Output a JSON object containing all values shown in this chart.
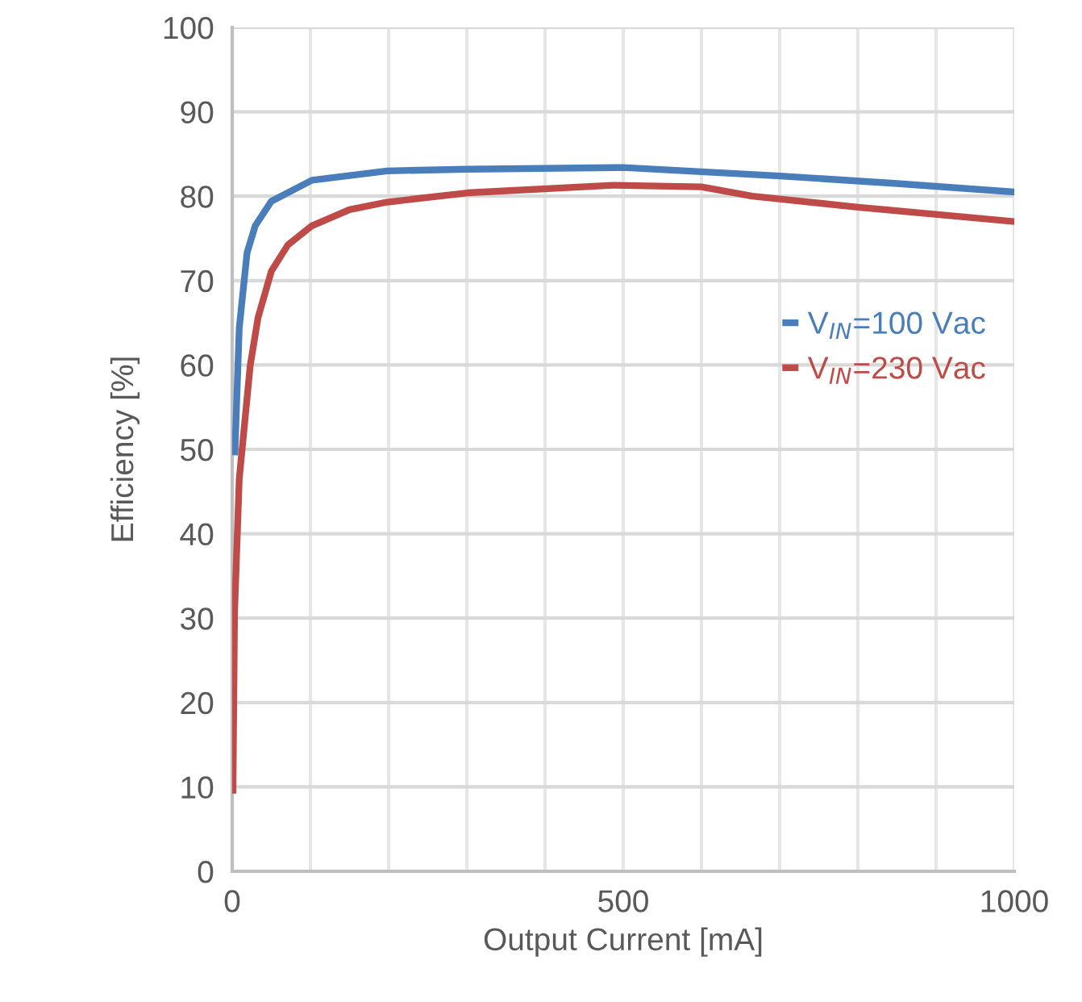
{
  "chart_data": {
    "type": "line",
    "xlabel": "Output Current [mA]",
    "ylabel": "Efficiency [%]",
    "xlim": [
      0,
      1000
    ],
    "xticks": [
      0,
      500,
      1000
    ],
    "ylim": [
      0,
      100
    ],
    "yticks": [
      0,
      10,
      20,
      30,
      40,
      50,
      60,
      70,
      80,
      90,
      100
    ],
    "grid": true,
    "legend": "right",
    "marker": "none",
    "line_style": "solid",
    "series": [
      {
        "name": "V$_{IN}$=100 Vac",
        "color": "#4a7ebb",
        "x": [
          3.5,
          9,
          19,
          29.5,
          50,
          102,
          198,
          300,
          500,
          600,
          700,
          850,
          1000
        ],
        "values": [
          49.7,
          64.4,
          73.3,
          76.5,
          79.4,
          81.9,
          83.0,
          83.2,
          83.4,
          82.9,
          82.4,
          81.5,
          80.5
        ]
      },
      {
        "name": "V$_{IN}$=230 Vac",
        "color": "#be4b48",
        "x": [
          1,
          3,
          9,
          23,
          33,
          50,
          71,
          102,
          150,
          198,
          301,
          487,
          600,
          665,
          800,
          1000
        ],
        "values": [
          9.6,
          30.6,
          46.5,
          59.9,
          65.6,
          71.1,
          74.2,
          76.5,
          78.4,
          79.3,
          80.4,
          81.3,
          81.1,
          80.0,
          78.7,
          77.0
        ]
      }
    ]
  }
}
